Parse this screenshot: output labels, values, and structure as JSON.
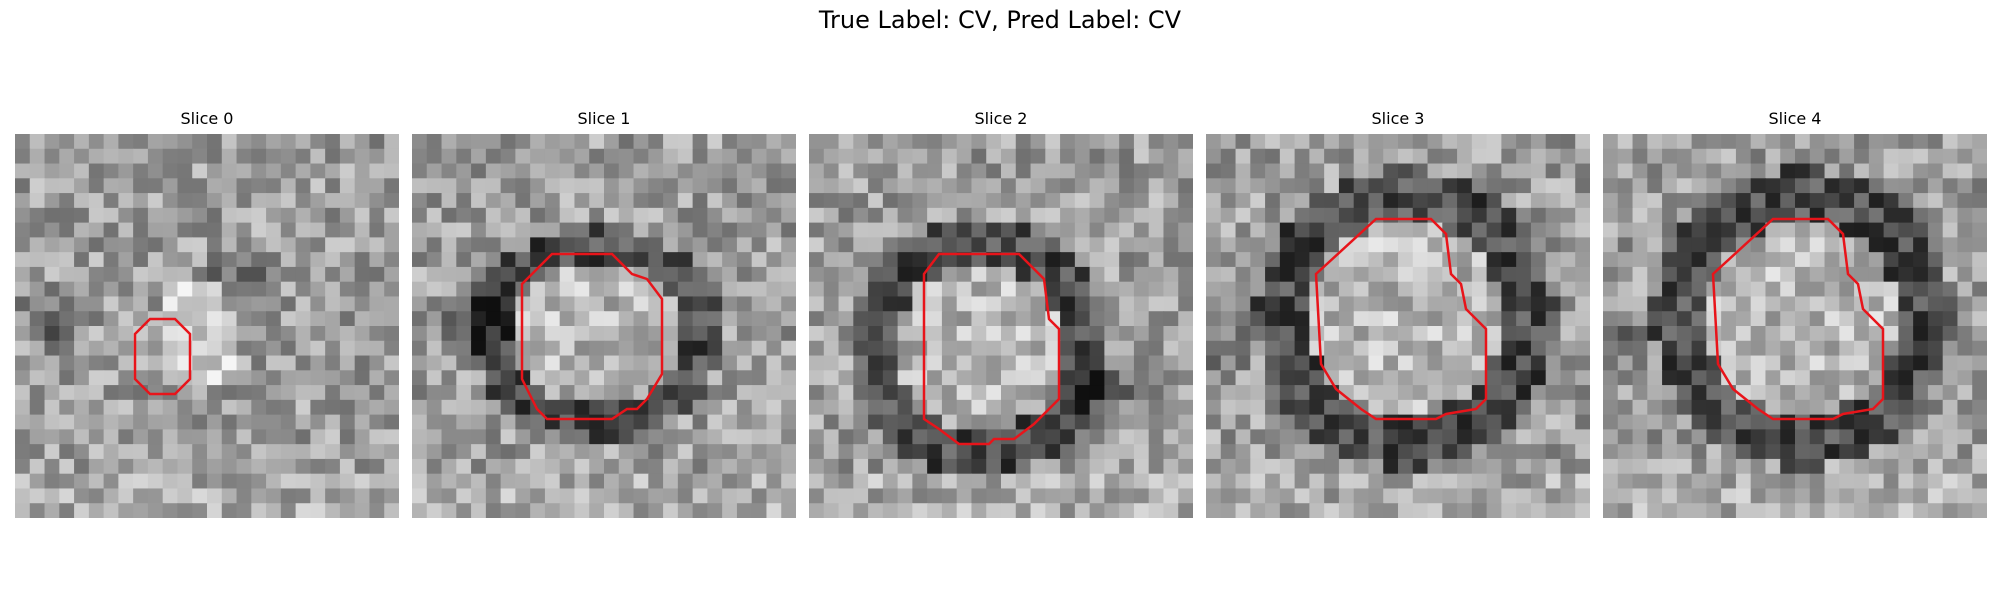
{
  "figure": {
    "title": "True Label: CV, Pred Label: CV",
    "colormap": "gray",
    "contour_color": "#e8141a"
  },
  "slices": [
    {
      "title": "Slice 0",
      "pattern": "noise-small-blob"
    },
    {
      "title": "Slice 1",
      "pattern": "ring-oval"
    },
    {
      "title": "Slice 2",
      "pattern": "ring-round"
    },
    {
      "title": "Slice 3",
      "pattern": "ring-large"
    },
    {
      "title": "Slice 4",
      "pattern": "ring-large"
    }
  ]
}
